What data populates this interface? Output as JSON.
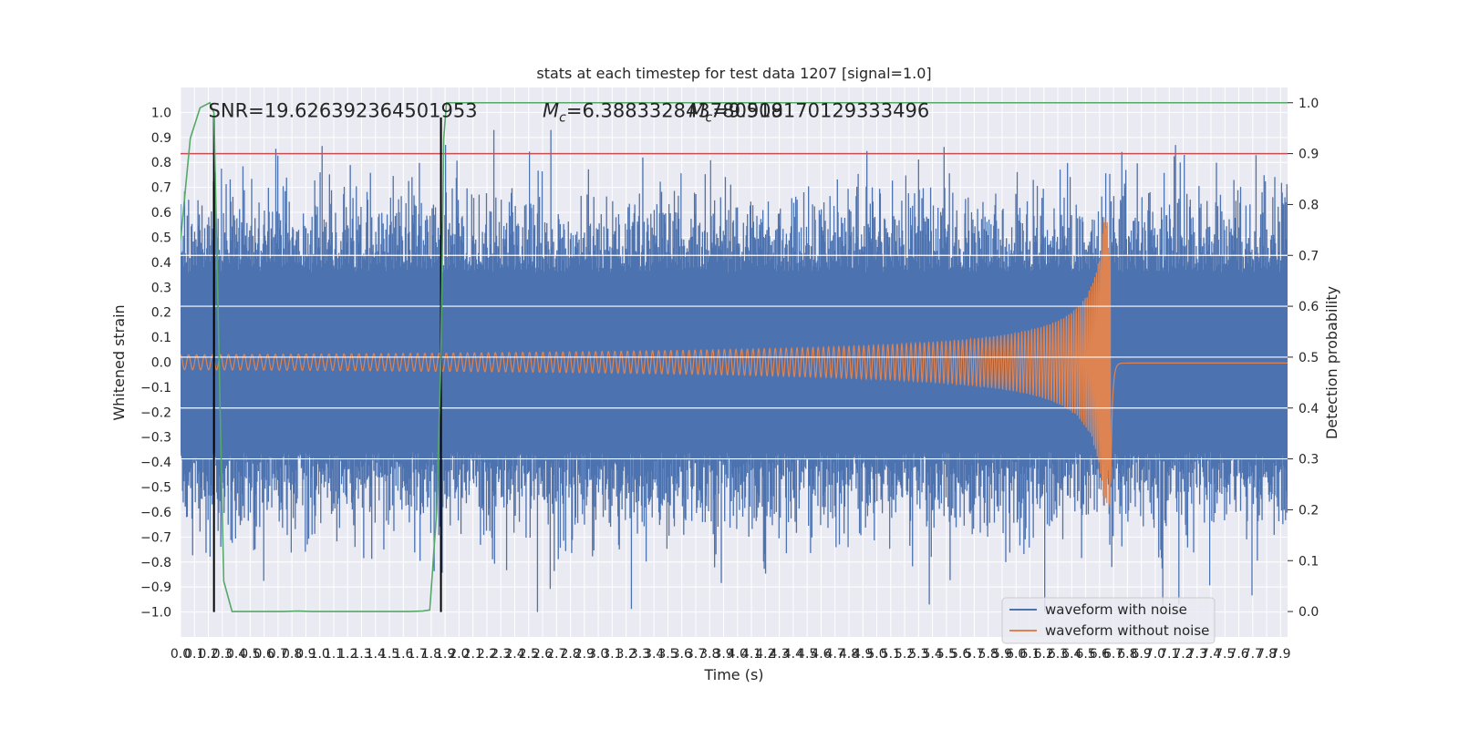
{
  "chart_data": {
    "type": "line",
    "title": "stats at each timestep for test data 1207 [signal=1.0]",
    "xlabel": "Time (s)",
    "ylabel": "Whitened strain",
    "y2label": "Detection probability",
    "xlim": [
      0.0,
      7.95
    ],
    "ylim": [
      -1.1,
      1.1
    ],
    "y2lim": [
      -0.05,
      1.03
    ],
    "x_ticks": [
      0.0,
      0.1,
      0.2,
      0.3,
      0.4,
      0.5,
      0.6,
      0.7,
      0.8,
      0.9,
      1.0,
      1.1,
      1.2,
      1.3,
      1.4,
      1.5,
      1.6,
      1.7,
      1.8,
      1.9,
      2.0,
      2.1,
      2.2,
      2.3,
      2.4,
      2.5,
      2.6,
      2.7,
      2.8,
      2.9,
      3.0,
      3.1,
      3.2,
      3.3,
      3.4,
      3.5,
      3.6,
      3.7,
      3.8,
      3.9,
      4.0,
      4.1,
      4.2,
      4.3,
      4.4,
      4.5,
      4.6,
      4.7,
      4.8,
      4.9,
      5.0,
      5.1,
      5.2,
      5.3,
      5.4,
      5.5,
      5.6,
      5.7,
      5.8,
      5.9,
      6.0,
      6.1,
      6.2,
      6.3,
      6.4,
      6.5,
      6.6,
      6.7,
      6.8,
      6.9,
      7.0,
      7.1,
      7.2,
      7.3,
      7.4,
      7.5,
      7.6,
      7.7,
      7.8,
      7.9
    ],
    "y_ticks": [
      -1.0,
      -0.9,
      -0.8,
      -0.7,
      -0.6,
      -0.5,
      -0.4,
      -0.3,
      -0.2,
      -0.1,
      0.0,
      0.1,
      0.2,
      0.3,
      0.4,
      0.5,
      0.6,
      0.7,
      0.8,
      0.9,
      1.0
    ],
    "y2_ticks": [
      0.0,
      0.1,
      0.2,
      0.3,
      0.4,
      0.5,
      0.6,
      0.7,
      0.8,
      0.9,
      1.0
    ],
    "series": [
      {
        "name": "waveform with noise",
        "axis": "left",
        "color": "#4c72b0",
        "noise_envelope": {
          "typical_amplitude": 0.4,
          "peak_max": 0.93,
          "peak_min": -1.0
        }
      },
      {
        "name": "waveform without noise",
        "axis": "left",
        "color": "#dd8452",
        "chirp": {
          "t_merger": 6.68,
          "initial_amplitude": 0.03,
          "peak_amplitude": 0.55,
          "trough_amplitude": -0.6
        }
      },
      {
        "name": "Detection probability",
        "axis": "right",
        "color": "#55a868",
        "x": [
          0.0,
          0.07,
          0.14,
          0.21,
          0.24,
          0.31,
          0.37,
          0.44,
          0.54,
          0.64,
          0.74,
          0.84,
          0.94,
          1.04,
          1.14,
          1.24,
          1.34,
          1.44,
          1.54,
          1.64,
          1.74,
          1.79,
          1.84,
          1.87,
          1.89,
          1.91,
          2.0,
          3.0,
          4.0,
          5.0,
          6.0,
          7.0,
          7.95
        ],
        "y": [
          0.73,
          0.93,
          0.99,
          1.0,
          0.98,
          0.06,
          0.0,
          0.0,
          0.0,
          0.0,
          0.0,
          0.001,
          0.0,
          0.0,
          0.0,
          0.0,
          0.0,
          0.0,
          0.0,
          0.0,
          0.001,
          0.003,
          0.2,
          0.5,
          0.93,
          1.0,
          1.0,
          1.0,
          1.0,
          1.0,
          1.0,
          1.0,
          1.0
        ]
      }
    ],
    "threshold_line": {
      "y": 0.9,
      "axis": "right",
      "color": "#c44e52"
    },
    "vertical_lines": [
      {
        "x": 0.24
      },
      {
        "x": 1.87
      }
    ],
    "annotations": [
      {
        "text": "SNR=19.626392364501953",
        "x": 0.2,
        "y": 1.0
      },
      {
        "text": "=6.388332843780518",
        "x": 2.6,
        "y": 1.0,
        "math_prefix": "M_c"
      },
      {
        "text": "=9.909170129333496",
        "x": 3.65,
        "y": 1.0,
        "math_prefix": "M_c"
      }
    ],
    "legend": {
      "entries": [
        "waveform with noise",
        "waveform without noise"
      ],
      "position": "lower-right"
    }
  }
}
